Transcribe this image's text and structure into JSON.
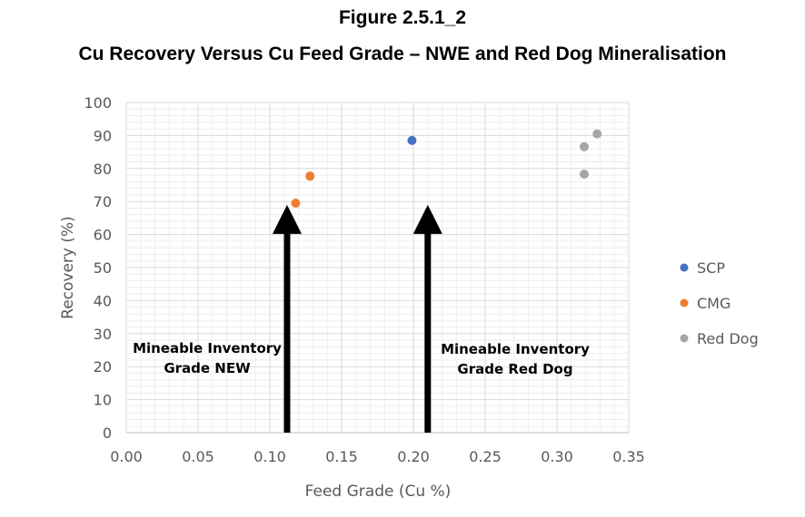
{
  "figure_label": "Figure 2.5.1_2",
  "figure_title": "Cu Recovery Versus Cu Feed Grade – NWE and Red Dog Mineralisation",
  "chart_data": {
    "type": "scatter",
    "xlabel": "Feed Grade (Cu %)",
    "ylabel": "Recovery (%)",
    "xlim": [
      0,
      0.35
    ],
    "ylim": [
      0,
      100
    ],
    "x_ticks": [
      "0.00",
      "0.05",
      "0.10",
      "0.15",
      "0.20",
      "0.25",
      "0.30",
      "0.35"
    ],
    "y_ticks": [
      "0",
      "10",
      "20",
      "30",
      "40",
      "50",
      "60",
      "70",
      "80",
      "90",
      "100"
    ],
    "grid": true,
    "legend_position": "right",
    "series": [
      {
        "name": "SCP",
        "color": "#4472c4",
        "points": [
          [
            0.199,
            88.5
          ]
        ]
      },
      {
        "name": "CMG",
        "color": "#ed7d31",
        "points": [
          [
            0.118,
            69.5
          ],
          [
            0.128,
            77.7
          ]
        ]
      },
      {
        "name": "Red Dog",
        "color": "#a5a5a5",
        "points": [
          [
            0.319,
            86.6
          ],
          [
            0.328,
            90.5
          ],
          [
            0.319,
            78.3
          ]
        ]
      }
    ],
    "annotations": [
      {
        "line1": "Mineable Inventory",
        "line2": "Grade NEW",
        "x": 0.112,
        "arrow_top_y": 69
      },
      {
        "line1": "Mineable Inventory",
        "line2": "Grade Red Dog",
        "x": 0.21,
        "arrow_top_y": 69
      }
    ]
  }
}
